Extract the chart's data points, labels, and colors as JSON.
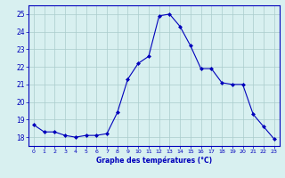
{
  "hours": [
    0,
    1,
    2,
    3,
    4,
    5,
    6,
    7,
    8,
    9,
    10,
    11,
    12,
    13,
    14,
    15,
    16,
    17,
    18,
    19,
    20,
    21,
    22,
    23
  ],
  "temperatures": [
    18.7,
    18.3,
    18.3,
    18.1,
    18.0,
    18.1,
    18.1,
    18.2,
    19.4,
    21.3,
    22.2,
    22.6,
    24.9,
    25.0,
    24.3,
    23.2,
    21.9,
    21.9,
    21.1,
    21.0,
    21.0,
    19.3,
    18.6,
    17.9
  ],
  "line_color": "#0000bb",
  "marker": "D",
  "marker_size": 2.0,
  "bg_color": "#d8f0f0",
  "grid_color": "#aacccc",
  "axis_color": "#0000bb",
  "xlabel": "Graphe des températures (°C)",
  "ylim": [
    17.5,
    25.5
  ],
  "yticks": [
    18,
    19,
    20,
    21,
    22,
    23,
    24,
    25
  ],
  "xlim": [
    -0.5,
    23.5
  ],
  "xticks": [
    0,
    1,
    2,
    3,
    4,
    5,
    6,
    7,
    8,
    9,
    10,
    11,
    12,
    13,
    14,
    15,
    16,
    17,
    18,
    19,
    20,
    21,
    22,
    23
  ],
  "xlabel_fontsize": 5.5,
  "xlabel_fontweight": "bold",
  "xtick_fontsize": 4.5,
  "ytick_fontsize": 5.5,
  "linewidth": 0.8
}
